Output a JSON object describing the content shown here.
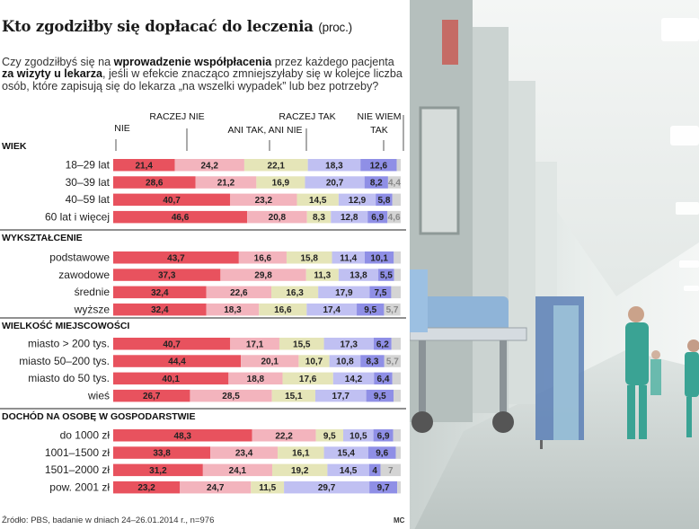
{
  "header": {
    "title": "Kto zgodziłby się dopłacać do leczenia",
    "title_unit": "(proc.)",
    "question_parts": [
      {
        "t": "Czy zgodziłbyś się na ",
        "b": false
      },
      {
        "t": "wprowadzenie współpłacenia",
        "b": true
      },
      {
        "t": " przez każdego pacjenta ",
        "b": false
      },
      {
        "t": "za wizyty u lekarza",
        "b": true
      },
      {
        "t": ", jeśli w efekcie znacząco zmniejszyłaby się w kolejce liczba osób, które zapisują się do lekarza „na wszelki wypadek” lub bez potrzeby?",
        "b": false
      }
    ]
  },
  "footer": {
    "source": "Źródło: PBS, badanie w dniach 24–26.01.2014 r., n=976",
    "credit": "MC"
  },
  "colors": {
    "nie": "#e8525e",
    "raczej_nie": "#f3b4bd",
    "ani": "#e5e5b8",
    "raczej_tak": "#c0c0f2",
    "tak": "#8f8fe6",
    "nie_wiem": "#d4d4d4",
    "photo_wall": "#e6ecea",
    "scrubs": "#3aa394"
  },
  "chart_data": {
    "type": "bar",
    "stacked": true,
    "orientation": "horizontal",
    "unit": "%",
    "legend_placement": "top",
    "series": [
      {
        "name": "NIE",
        "color": "#e8525e"
      },
      {
        "name": "RACZEJ NIE",
        "color": "#f3b4bd"
      },
      {
        "name": "ANI TAK, ANI NIE",
        "color": "#e5e5b8"
      },
      {
        "name": "RACZEJ TAK",
        "color": "#c0c0f2"
      },
      {
        "name": "TAK",
        "color": "#8f8fe6"
      },
      {
        "name": "NIE WIEM",
        "color": "#d4d4d4"
      }
    ],
    "groups": [
      {
        "title": "WIEK",
        "rows": [
          {
            "label": "18–29 lat",
            "values": [
              21.4,
              24.2,
              22.1,
              18.3,
              12.6,
              1.4
            ],
            "shown": [
              "21,4",
              "24,2",
              "22,1",
              "18,3",
              "12,6",
              ""
            ]
          },
          {
            "label": "30–39 lat",
            "values": [
              28.6,
              21.2,
              16.9,
              20.7,
              8.2,
              4.4
            ],
            "shown": [
              "28,6",
              "21,2",
              "16,9",
              "20,7",
              "8,2",
              "4,4"
            ]
          },
          {
            "label": "40–59 lat",
            "values": [
              40.7,
              23.2,
              14.5,
              12.9,
              5.8,
              2.9
            ],
            "shown": [
              "40,7",
              "23,2",
              "14,5",
              "12,9",
              "5,8",
              ""
            ]
          },
          {
            "label": "60 lat i więcej",
            "values": [
              46.6,
              20.8,
              8.3,
              12.8,
              6.9,
              4.6
            ],
            "shown": [
              "46,6",
              "20,8",
              "8,3",
              "12,8",
              "6,9",
              "4,6"
            ]
          }
        ]
      },
      {
        "title": "WYKSZTAŁCENIE",
        "rows": [
          {
            "label": "podstawowe",
            "values": [
              43.7,
              16.6,
              15.8,
              11.4,
              10.1,
              2.4
            ],
            "shown": [
              "43,7",
              "16,6",
              "15,8",
              "11,4",
              "10,1",
              ""
            ]
          },
          {
            "label": "zawodowe",
            "values": [
              37.3,
              29.8,
              11.3,
              13.8,
              5.5,
              2.3
            ],
            "shown": [
              "37,3",
              "29,8",
              "11,3",
              "13,8",
              "5,5",
              ""
            ]
          },
          {
            "label": "średnie",
            "values": [
              32.4,
              22.6,
              16.3,
              17.9,
              7.5,
              3.3
            ],
            "shown": [
              "32,4",
              "22,6",
              "16,3",
              "17,9",
              "7,5",
              ""
            ]
          },
          {
            "label": "wyższe",
            "values": [
              32.4,
              18.3,
              16.6,
              17.4,
              9.5,
              5.7
            ],
            "shown": [
              "32,4",
              "18,3",
              "16,6",
              "17,4",
              "9,5",
              "5,7"
            ]
          }
        ]
      },
      {
        "title": "WIELKOŚĆ MIEJSCOWOŚCI",
        "rows": [
          {
            "label": "miasto > 200 tys.",
            "values": [
              40.7,
              17.1,
              15.5,
              17.3,
              6.2,
              3.2
            ],
            "shown": [
              "40,7",
              "17,1",
              "15,5",
              "17,3",
              "6,2",
              ""
            ]
          },
          {
            "label": "miasto 50–200 tys.",
            "values": [
              44.4,
              20.1,
              10.7,
              10.8,
              8.3,
              5.7
            ],
            "shown": [
              "44,4",
              "20,1",
              "10,7",
              "10,8",
              "8,3",
              "5,7"
            ]
          },
          {
            "label": "miasto do 50 tys.",
            "values": [
              40.1,
              18.8,
              17.6,
              14.2,
              6.4,
              2.9
            ],
            "shown": [
              "40,1",
              "18,8",
              "17,6",
              "14,2",
              "6,4",
              ""
            ]
          },
          {
            "label": "wieś",
            "values": [
              26.7,
              28.5,
              15.1,
              17.7,
              9.5,
              2.5
            ],
            "shown": [
              "26,7",
              "28,5",
              "15,1",
              "17,7",
              "9,5",
              ""
            ]
          }
        ]
      },
      {
        "title": "DOCHÓD NA OSOBĘ W GOSPODARSTWIE",
        "rows": [
          {
            "label": "do 1000 zł",
            "values": [
              48.3,
              22.2,
              9.5,
              10.5,
              6.9,
              2.6
            ],
            "shown": [
              "48,3",
              "22,2",
              "9,5",
              "10,5",
              "6,9",
              ""
            ]
          },
          {
            "label": "1001–1500 zł",
            "values": [
              33.8,
              23.4,
              16.1,
              15.4,
              9.6,
              1.7
            ],
            "shown": [
              "33,8",
              "23,4",
              "16,1",
              "15,4",
              "9,6",
              ""
            ]
          },
          {
            "label": "1501–2000 zł",
            "values": [
              31.2,
              24.1,
              19.2,
              14.5,
              4.0,
              7.0
            ],
            "shown": [
              "31,2",
              "24,1",
              "19,2",
              "14,5",
              "4",
              "7"
            ]
          },
          {
            "label": "pow. 2001 zł",
            "values": [
              23.2,
              24.7,
              11.5,
              29.7,
              9.7,
              1.2
            ],
            "shown": [
              "23,2",
              "24,7",
              "11,5",
              "29,7",
              "9,7",
              ""
            ]
          }
        ]
      }
    ]
  }
}
